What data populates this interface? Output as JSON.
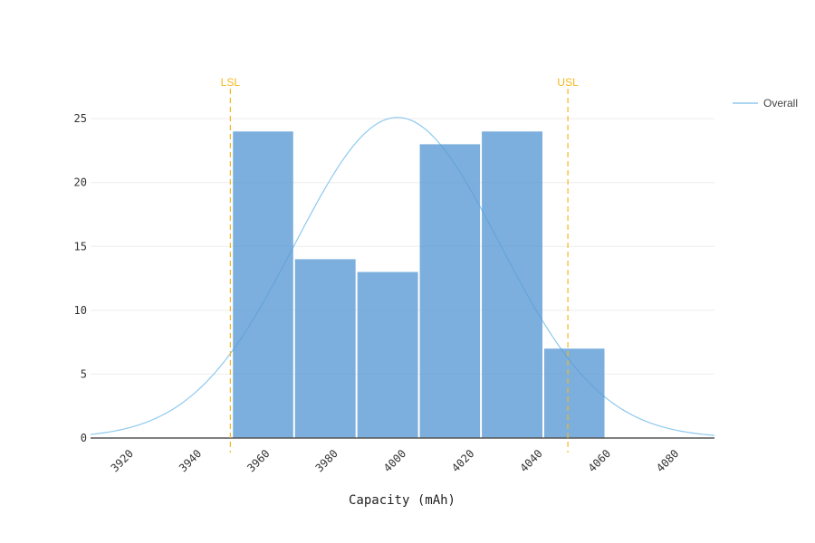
{
  "chart_data": {
    "type": "bar",
    "title": "",
    "xlabel": "Capacity (mAh)",
    "ylabel": "",
    "xlim": [
      3910,
      4093
    ],
    "ylim": [
      0,
      26.5
    ],
    "x_ticks": [
      3920,
      3940,
      3960,
      3980,
      4000,
      4020,
      4040,
      4060,
      4080
    ],
    "y_ticks": [
      0,
      5,
      10,
      15,
      20,
      25
    ],
    "bins": [
      {
        "start": 3951.5,
        "end": 3969.7,
        "count": 24
      },
      {
        "start": 3969.7,
        "end": 3988.0,
        "count": 14
      },
      {
        "start": 3988.0,
        "end": 4006.3,
        "count": 13
      },
      {
        "start": 4006.3,
        "end": 4024.5,
        "count": 23
      },
      {
        "start": 4024.5,
        "end": 4042.8,
        "count": 24
      },
      {
        "start": 4042.8,
        "end": 4061.0,
        "count": 7
      }
    ],
    "distribution_curve": {
      "name": "Overall",
      "mean": 4000,
      "std": 30,
      "peak": 25.1
    },
    "spec_limits": [
      {
        "label": "LSL",
        "x": 3951
      },
      {
        "label": "USL",
        "x": 4050
      }
    ],
    "grid": true,
    "legend_position": "top-right"
  },
  "colors": {
    "bar_fill": "#5b9bd5",
    "curve": "#8ec9ee",
    "limit": "#f5b81c",
    "grid": "#eeeeee",
    "axis": "#555555"
  },
  "legend": {
    "items": [
      {
        "name": "Overall",
        "icon": "line-swatch-icon"
      }
    ]
  }
}
